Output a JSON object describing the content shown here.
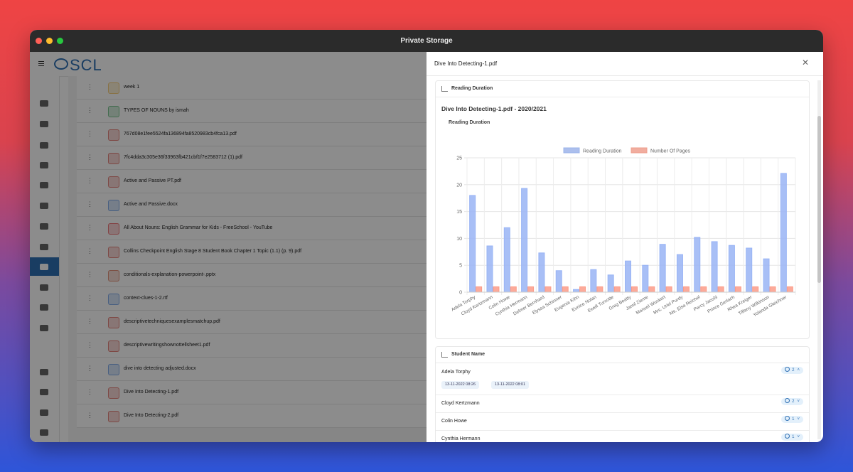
{
  "window_title": "Private Storage",
  "logo": "SCL",
  "files": [
    "week 1",
    "TYPES OF NOUNS by ismah",
    "767d08e1fee5524fa136894fa8520983cb4fca13.pdf",
    "7fc4dda3c305e36f33963fb421cbf1f7e2583712 (1).pdf",
    "Active and Passive PT.pdf",
    "Active and Passive.docx",
    "All About Nouns: English Grammar for Kids - FreeSchool - YouTube",
    "Collins Checkpoint English Stage 8 Student Book Chapter 1 Topic (1.1) (p. 9).pdf",
    "conditionals-explanation-powerpoint-.pptx",
    "context-clues-1-2.rtf",
    "descriptivetechniquesexamplesmatchup.pdf",
    "descriptivewritingshownottellsheet1.pdf",
    "dive into detecting adjusted.docx",
    "Dive Into Detecting-1.pdf",
    "Dive Into Detecting-2.pdf"
  ],
  "panel": {
    "title": "Dive Into Detecting-1.pdf",
    "chart_card_title": "Reading Duration",
    "students_card_title": "Student Name",
    "students": [
      {
        "name": "Adela Torphy",
        "count": 2,
        "dates": [
          "13-11-2022 08:26",
          "13-11-2022 08:01"
        ]
      },
      {
        "name": "Cloyd Kertzmann",
        "count": 2
      },
      {
        "name": "Colin Howe",
        "count": 1
      },
      {
        "name": "Cynthia Hermann",
        "count": 1
      }
    ]
  },
  "chart_data": {
    "type": "bar",
    "title": "Dive Into Detecting-1.pdf - 2020/2021",
    "subtitle": "Reading Duration",
    "categories": [
      "Adela Torphy",
      "Cloyd Kertzmann",
      "Colin Howe",
      "Cynthia Hermann",
      "Delmer Bernhard",
      "Elyssa Schinner",
      "Eugenia Kihn",
      "Eunice Nolan",
      "Ewell Turcotte",
      "Greg Beatty",
      "Jamil Zieme",
      "Manuel Wuckert",
      "Mrs. Uriel Purdy",
      "Ms. Elsa Reichel",
      "Percy Jacobi",
      "Prince Gerlach",
      "Rhea Kreiger",
      "Tiffany Wilkinson",
      "Yolanda Gleichner"
    ],
    "series": [
      {
        "name": "Reading Duration",
        "color": "#9db4ea",
        "values": [
          18.0,
          8.6,
          12.0,
          19.3,
          7.3,
          4.0,
          0.5,
          4.2,
          3.2,
          5.8,
          5.0,
          8.9,
          7.0,
          10.2,
          9.4,
          8.7,
          8.2,
          6.2,
          22.1
        ]
      },
      {
        "name": "Number Of Pages",
        "color": "#ee9f8e",
        "values": [
          1,
          1,
          1,
          1,
          1,
          1,
          1,
          1,
          1,
          1,
          1,
          1,
          1,
          1,
          1,
          1,
          1,
          1,
          1
        ]
      }
    ],
    "ylim": [
      0,
      25
    ],
    "yticks": [
      0,
      5,
      10,
      15,
      20,
      25
    ],
    "grid": true,
    "legend": "top"
  }
}
